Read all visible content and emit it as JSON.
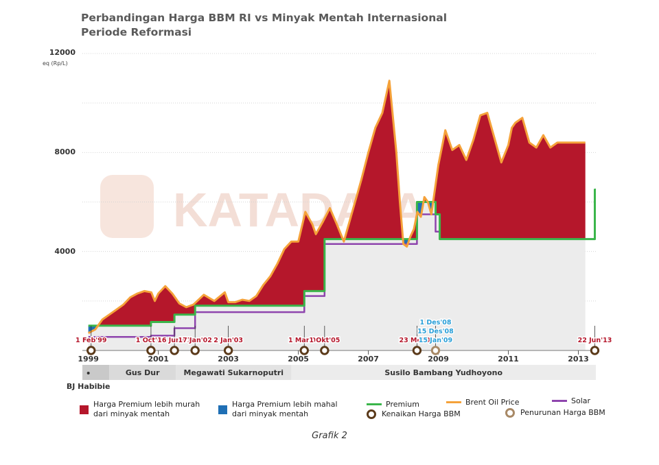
{
  "title_line1": "Perbandingan Harga BBM RI vs Minyak Mentah Internasional",
  "title_line2": "Periode Reformasi",
  "watermark": "KATADATA",
  "caption": "Grafik 2",
  "colors": {
    "area_cheaper": "#b5172b",
    "area_expensive": "#1f6fb5",
    "premium": "#3ab54a",
    "brent": "#f5a23a",
    "solar": "#8e44ad",
    "increase_marker": "#5b3a1a",
    "decrease_marker": "#a88966",
    "era_band": "#e6e6e6",
    "date_red": "#b5172b",
    "date_blue": "#2a9fd8"
  },
  "chart_data": {
    "type": "line",
    "y_unit_label": "eq (Rp/L)",
    "ylim": [
      0,
      12000
    ],
    "y_ticks": [
      4000,
      8000,
      12000
    ],
    "x_range": [
      1998.83,
      2013.5
    ],
    "x_tick_labels": [
      "1999",
      "2001",
      "2003",
      "2005",
      "2007",
      "2009",
      "2011",
      "2013"
    ],
    "x_tick_values": [
      1999.0,
      2001.0,
      2003.0,
      2005.0,
      2007.0,
      2009.0,
      2011.0,
      2013.0
    ],
    "series": [
      {
        "name": "Brent Oil Price",
        "x": [
          1999.0,
          1999.2,
          1999.4,
          1999.6,
          1999.8,
          2000.0,
          2000.2,
          2000.4,
          2000.6,
          2000.8,
          2000.9,
          2001.0,
          2001.2,
          2001.4,
          2001.6,
          2001.8,
          2002.0,
          2002.3,
          2002.6,
          2002.9,
          2003.0,
          2003.2,
          2003.4,
          2003.6,
          2003.8,
          2004.0,
          2004.2,
          2004.4,
          2004.6,
          2004.8,
          2005.0,
          2005.2,
          2005.4,
          2005.5,
          2005.7,
          2005.9,
          2006.1,
          2006.3,
          2006.5,
          2006.7,
          2006.8,
          2007.0,
          2007.2,
          2007.4,
          2007.6,
          2007.8,
          2007.9,
          2008.0,
          2008.1,
          2008.2,
          2008.3,
          2008.4,
          2008.5,
          2008.6,
          2008.7,
          2008.8,
          2008.9,
          2009.0,
          2009.1,
          2009.2,
          2009.4,
          2009.6,
          2009.8,
          2010.0,
          2010.2,
          2010.4,
          2010.6,
          2010.8,
          2011.0,
          2011.1,
          2011.2,
          2011.4,
          2011.6,
          2011.8,
          2012.0,
          2012.2,
          2012.4,
          2012.5,
          2012.7,
          2012.9,
          2013.0,
          2013.1,
          2013.2
        ],
        "values": [
          700,
          850,
          1250,
          1450,
          1650,
          1850,
          2150,
          2300,
          2400,
          2350,
          2000,
          2300,
          2600,
          2300,
          1900,
          1750,
          1850,
          2250,
          2000,
          2350,
          1950,
          1950,
          2050,
          2000,
          2200,
          2650,
          3000,
          3500,
          4100,
          4400,
          4400,
          5600,
          5100,
          4700,
          5200,
          5750,
          5100,
          4400,
          5400,
          6400,
          6900,
          8000,
          9000,
          9600,
          10900,
          8000,
          6000,
          4300,
          4200,
          4600,
          4900,
          5600,
          5400,
          6200,
          6000,
          5500,
          6500,
          7500,
          8200,
          8900,
          8100,
          8300,
          7700,
          8500,
          9500,
          9600,
          8600,
          7600,
          8300,
          9000,
          9200,
          9400,
          8400,
          8200,
          8700,
          8200,
          8400,
          8400,
          8400,
          8400,
          8400,
          8400,
          8400
        ]
      },
      {
        "name": "Premium",
        "x": [
          1999.0,
          2000.79,
          2000.79,
          2001.46,
          2001.46,
          2002.05,
          2002.05,
          2005.17,
          2005.17,
          2005.75,
          2005.75,
          2008.39,
          2008.39,
          2008.92,
          2008.92,
          2009.04,
          2009.04,
          2013.47,
          2013.47,
          2013.5
        ],
        "values": [
          1000,
          1000,
          1150,
          1150,
          1450,
          1450,
          1810,
          1810,
          2400,
          2400,
          4500,
          4500,
          6000,
          6000,
          5500,
          5500,
          4500,
          4500,
          6500,
          6500
        ]
      },
      {
        "name": "Solar",
        "x": [
          1999.0,
          2000.79,
          2000.79,
          2001.46,
          2001.46,
          2002.05,
          2002.05,
          2005.17,
          2005.17,
          2005.75,
          2005.75,
          2008.39,
          2008.39,
          2008.92,
          2008.92,
          2009.04,
          2009.04,
          2013.47,
          2013.47,
          2013.5
        ],
        "values": [
          550,
          550,
          600,
          600,
          900,
          900,
          1550,
          1550,
          2200,
          2200,
          4300,
          4300,
          5500,
          5500,
          4800,
          4800,
          4500,
          4500,
          5500,
          5500
        ]
      }
    ],
    "area_legend": [
      {
        "name": "Harga Premium lebih murah dari minyak mentah",
        "color": "#b5172b"
      },
      {
        "name": "Harga Premium lebih mahal dari minyak mentah",
        "color": "#1f6fb5"
      }
    ],
    "events": [
      {
        "label": "1 Feb'99",
        "x": 1999.08,
        "kind": "increase",
        "color": "red"
      },
      {
        "label": "1 Oct'00",
        "x": 2000.79,
        "kind": "increase",
        "color": "red"
      },
      {
        "label": "16 Jun'01",
        "x": 2001.46,
        "kind": "increase",
        "color": "red"
      },
      {
        "label": "17 Jan'02",
        "x": 2002.05,
        "kind": "increase",
        "color": "red"
      },
      {
        "label": "2 Jan'03",
        "x": 2003.0,
        "kind": "increase",
        "color": "red"
      },
      {
        "label": "1 Mar'05",
        "x": 2005.17,
        "kind": "increase",
        "color": "red"
      },
      {
        "label": "1 Okt'05",
        "x": 2005.75,
        "kind": "increase",
        "color": "red"
      },
      {
        "label": "23 Mei'08",
        "x": 2008.39,
        "kind": "increase",
        "color": "red"
      },
      {
        "label_lines": [
          "1 Des'08",
          "15 Des'08",
          "15 Jan'09"
        ],
        "x": 2008.92,
        "kind": "decrease",
        "color": "blue"
      },
      {
        "label": "22 Jun'13",
        "x": 2013.47,
        "kind": "increase",
        "color": "red"
      }
    ],
    "eras": [
      {
        "label": "BJ Habibie",
        "x_start": 1998.83,
        "x_end": 1999.6
      },
      {
        "label": "Gus Dur",
        "x_start": 1999.6,
        "x_end": 2001.5
      },
      {
        "label": "Megawati Sukarnoputri",
        "x_start": 2001.5,
        "x_end": 2004.8
      },
      {
        "label": "Susilo Bambang Yudhoyono",
        "x_start": 2004.8,
        "x_end": 2013.5
      }
    ]
  },
  "legend": {
    "cheaper_label_l1": "Harga Premium lebih murah",
    "cheaper_label_l2": "dari minyak mentah",
    "expensive_label_l1": "Harga Premium lebih mahal",
    "expensive_label_l2": "dari minyak mentah",
    "premium_label": "Premium",
    "brent_label": "Brent Oil Price",
    "solar_label": "Solar",
    "increase_label": "Kenaikan Harga BBM",
    "decrease_label": "Penurunan Harga BBM"
  }
}
